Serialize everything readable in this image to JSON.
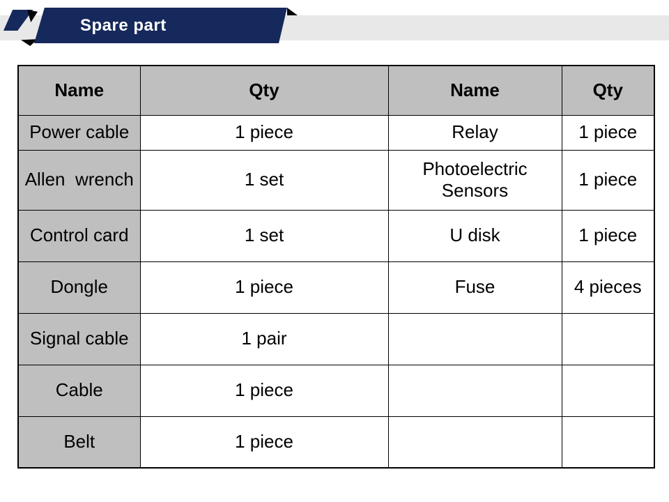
{
  "banner": {
    "title": "Spare part",
    "navy_color": "#16295c",
    "strip_color": "#e8e8e8",
    "fold_color": "#050505",
    "title_color": "#ffffff"
  },
  "table": {
    "border_color": "#000000",
    "header_bg": "#bfbfbf",
    "name_col_bg": "#bfbfbf",
    "cell_bg": "#ffffff",
    "columns": [
      "Name",
      "Qty",
      "Name",
      "Qty"
    ],
    "rows": [
      [
        "Power cable",
        "1 piece",
        "Relay",
        "1 piece"
      ],
      [
        "Allen  wrench",
        "1 set",
        "Photoelectric\nSensors",
        "1 piece"
      ],
      [
        "Control card",
        "1 set",
        "U disk",
        "1 piece"
      ],
      [
        "Dongle",
        "1 piece",
        "Fuse",
        "4 pieces"
      ],
      [
        "Signal cable",
        "1 pair",
        "",
        ""
      ],
      [
        "Cable",
        "1 piece",
        "",
        ""
      ],
      [
        "Belt",
        "1 piece",
        "",
        ""
      ]
    ]
  }
}
